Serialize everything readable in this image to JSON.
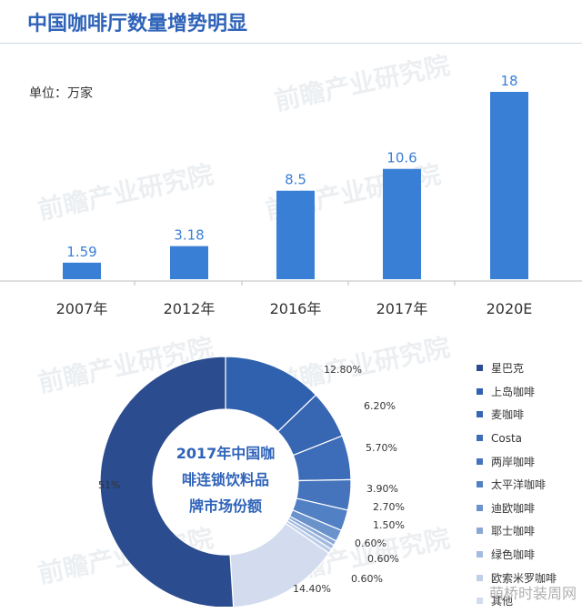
{
  "header": {
    "title": "中国咖啡厅数量增势明显"
  },
  "watermark": {
    "text": "前瞻产业研究院"
  },
  "footer": {
    "text": "萌桥时装周网"
  },
  "chart_data": [
    {
      "type": "bar",
      "unit_label": "单位：万家",
      "categories": [
        "2007年",
        "2012年",
        "2016年",
        "2017年",
        "2020E"
      ],
      "values": [
        1.59,
        3.18,
        8.5,
        10.6,
        18
      ],
      "value_labels": [
        "1.59",
        "3.18",
        "8.5",
        "10.6",
        "18"
      ],
      "color": "#3a7fd6",
      "label_color": "#3a7fd6"
    },
    {
      "type": "pie",
      "center_title_lines": [
        "2017年中国咖",
        "啡连锁饮料品",
        "牌市场份额"
      ],
      "slices": [
        {
          "name": "星巴克",
          "value": 51,
          "label": "51%",
          "color": "#2b4d8f"
        },
        {
          "name": "上岛咖啡",
          "value": 12.8,
          "label": "12.80%",
          "color": "#3061ae"
        },
        {
          "name": "麦咖啡",
          "value": 6.2,
          "label": "6.20%",
          "color": "#3766b2"
        },
        {
          "name": "Costa",
          "value": 5.7,
          "label": "5.70%",
          "color": "#3d6cb8"
        },
        {
          "name": "两岸咖啡",
          "value": 3.9,
          "label": "3.90%",
          "color": "#4574bd"
        },
        {
          "name": "太平洋咖啡",
          "value": 2.7,
          "label": "2.70%",
          "color": "#5280c4"
        },
        {
          "name": "迪欧咖啡",
          "value": 1.5,
          "label": "1.50%",
          "color": "#6a93cc"
        },
        {
          "name": "耶士咖啡",
          "value": 0.6,
          "label": "0.60%",
          "color": "#8aa8d6"
        },
        {
          "name": "绿色咖啡",
          "value": 0.6,
          "label": "0.60%",
          "color": "#a3bbe0"
        },
        {
          "name": "欧索米罗咖啡",
          "value": 0.6,
          "label": "0.60%",
          "color": "#bfcfe9"
        },
        {
          "name": "其他",
          "value": 14.4,
          "label": "14.40%",
          "color": "#d3dcee"
        }
      ]
    }
  ]
}
